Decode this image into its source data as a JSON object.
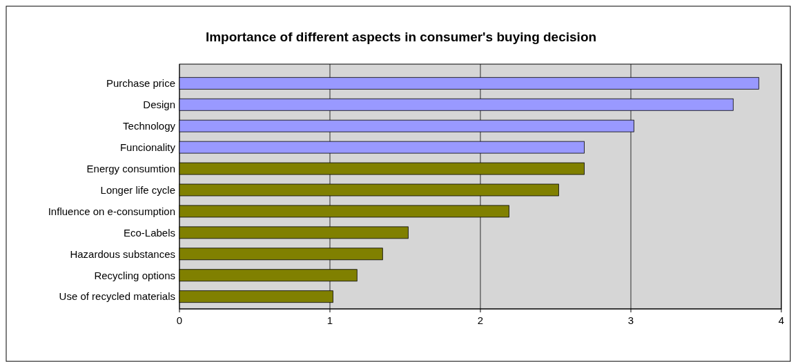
{
  "chart_data": {
    "type": "bar",
    "orientation": "horizontal",
    "title": "Importance of different aspects in consumer's buying decision",
    "categories": [
      "Purchase price",
      "Design ",
      "Technology",
      "Funcionality",
      "Energy consumtion",
      "Longer life cycle",
      "Influence on e-consumption",
      "Eco-Labels",
      "Hazardous substances",
      "Recycling options",
      "Use of recycled materials"
    ],
    "values": [
      3.85,
      3.68,
      3.02,
      2.69,
      2.69,
      2.52,
      2.19,
      1.52,
      1.35,
      1.18,
      1.02
    ],
    "colors": [
      "#9999ff",
      "#9999ff",
      "#9999ff",
      "#9999ff",
      "#808000",
      "#808000",
      "#808000",
      "#808000",
      "#808000",
      "#808000",
      "#808000"
    ],
    "xlim": [
      0,
      4
    ],
    "xticks": [
      0,
      1,
      2,
      3,
      4
    ],
    "grid": "x"
  }
}
